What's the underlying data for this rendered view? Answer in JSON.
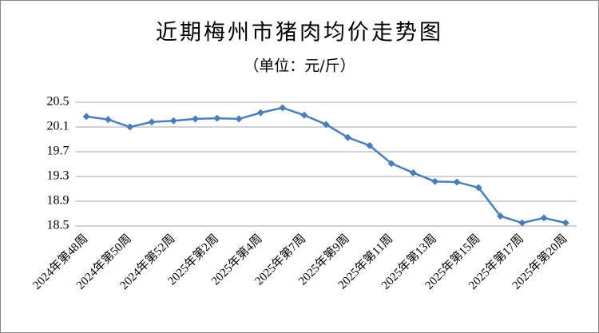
{
  "chart_data": {
    "type": "line",
    "title": "近期梅州市猪肉均价走势图",
    "subtitle": "（单位：元/斤）",
    "categories": [
      "2024年第48周",
      null,
      "2024年第50周",
      null,
      "2024年第52周",
      null,
      "2025年第2周",
      null,
      "2025年第4周",
      null,
      "2025年第7周",
      null,
      "2025年第9周",
      null,
      "2025年第11周",
      null,
      "2025年第13周",
      null,
      "2025年第15周",
      null,
      "2025年第17周",
      null,
      "2025年第20周"
    ],
    "series": [
      {
        "name": null,
        "color": "#4a7ebb",
        "values": [
          20.27,
          20.22,
          20.1,
          20.18,
          20.2,
          20.23,
          20.24,
          20.23,
          20.33,
          20.41,
          20.29,
          20.14,
          19.93,
          19.8,
          19.51,
          19.36,
          19.22,
          19.21,
          19.12,
          18.66,
          18.55,
          18.63,
          18.55
        ]
      }
    ],
    "ylim": [
      18.5,
      20.5
    ],
    "yticks": [
      18.5,
      18.9,
      19.3,
      19.7,
      20.1,
      20.5
    ],
    "grid": true
  }
}
